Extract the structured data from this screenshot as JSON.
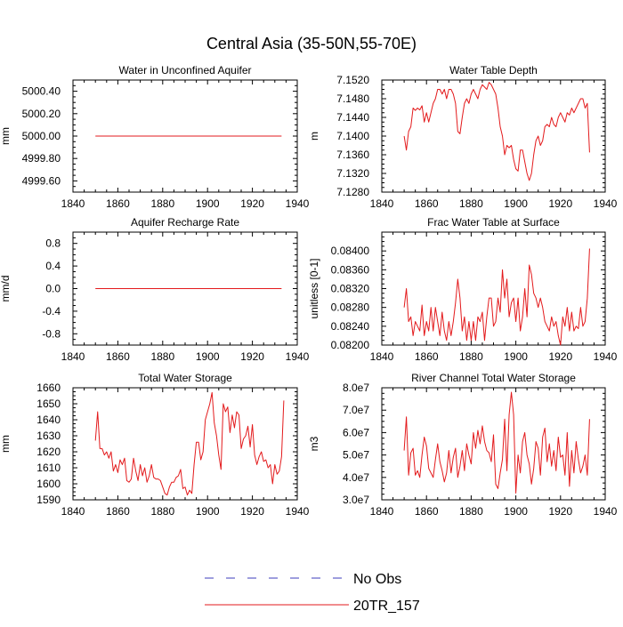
{
  "page_title": "Central Asia (35-50N,55-70E)",
  "legend": {
    "entries": [
      {
        "label": "No Obs",
        "color": "#3c3cbe",
        "style": "dashed"
      },
      {
        "label": "20TR_157",
        "color": "#e31a1c",
        "style": "solid"
      }
    ]
  },
  "chart_data": [
    {
      "type": "line",
      "title": "Water in Unconfined Aquifer",
      "xlabel": "",
      "ylabel": "mm",
      "xlim": [
        1840,
        1940
      ],
      "ylim": [
        4999.5,
        5000.5
      ],
      "xticks": [
        1840,
        1860,
        1880,
        1900,
        1920,
        1940
      ],
      "yticks": [
        "4999.60",
        "4999.80",
        "5000.00",
        "5000.20",
        "5000.40"
      ],
      "grid": false,
      "series": [
        {
          "name": "20TR_157",
          "x": [
            1850,
            1933
          ],
          "values": [
            5000.0,
            5000.0
          ]
        }
      ]
    },
    {
      "type": "line",
      "title": "Water Table Depth",
      "xlabel": "",
      "ylabel": "m",
      "xlim": [
        1840,
        1940
      ],
      "ylim": [
        7.128,
        7.152
      ],
      "xticks": [
        1840,
        1860,
        1880,
        1900,
        1920,
        1940
      ],
      "yticks": [
        "7.1280",
        "7.1320",
        "7.1360",
        "7.1400",
        "7.1440",
        "7.1480",
        "7.1520"
      ],
      "grid": false,
      "series": [
        {
          "name": "20TR_157",
          "x_start": 1850,
          "x_step": 1,
          "values": [
            7.14,
            7.137,
            7.141,
            7.142,
            7.146,
            7.1455,
            7.146,
            7.1456,
            7.1465,
            7.143,
            7.145,
            7.143,
            7.145,
            7.147,
            7.148,
            7.15,
            7.15,
            7.149,
            7.15,
            7.148,
            7.15,
            7.15,
            7.149,
            7.147,
            7.141,
            7.1405,
            7.144,
            7.147,
            7.148,
            7.147,
            7.149,
            7.15,
            7.149,
            7.148,
            7.15,
            7.151,
            7.1505,
            7.15,
            7.1515,
            7.151,
            7.15,
            7.149,
            7.146,
            7.142,
            7.14,
            7.136,
            7.138,
            7.1375,
            7.138,
            7.135,
            7.133,
            7.1325,
            7.137,
            7.137,
            7.1345,
            7.132,
            7.1305,
            7.132,
            7.136,
            7.139,
            7.14,
            7.138,
            7.139,
            7.142,
            7.1425,
            7.142,
            7.144,
            7.1425,
            7.142,
            7.144,
            7.145,
            7.144,
            7.143,
            7.145,
            7.1445,
            7.146,
            7.145,
            7.146,
            7.147,
            7.148,
            7.148,
            7.146,
            7.147,
            7.1365
          ]
        }
      ]
    },
    {
      "type": "line",
      "title": "Aquifer Recharge Rate",
      "xlabel": "",
      "ylabel": "mm/d",
      "xlim": [
        1840,
        1940
      ],
      "ylim": [
        -1.0,
        1.0
      ],
      "xticks": [
        1840,
        1860,
        1880,
        1900,
        1920,
        1940
      ],
      "yticks": [
        "-0.8",
        "-0.4",
        "0.0",
        "0.4",
        "0.8"
      ],
      "grid": false,
      "series": [
        {
          "name": "20TR_157",
          "x": [
            1850,
            1933
          ],
          "values": [
            0.0,
            0.0
          ]
        }
      ]
    },
    {
      "type": "line",
      "title": "Frac Water Table at Surface",
      "xlabel": "",
      "ylabel": "unitless [0-1]",
      "xlim": [
        1840,
        1940
      ],
      "ylim": [
        0.082,
        0.0844
      ],
      "xticks": [
        1840,
        1860,
        1880,
        1900,
        1920,
        1940
      ],
      "yticks": [
        "0.08200",
        "0.08240",
        "0.08280",
        "0.08320",
        "0.08360",
        "0.08400"
      ],
      "grid": false,
      "series": [
        {
          "name": "20TR_157",
          "x_start": 1850,
          "x_step": 1,
          "values": [
            0.0828,
            0.0832,
            0.0825,
            0.0826,
            0.0822,
            0.0825,
            0.0824,
            0.0823,
            0.08285,
            0.0822,
            0.0825,
            0.0823,
            0.0828,
            0.0823,
            0.0828,
            0.0825,
            0.0822,
            0.0827,
            0.0823,
            0.0821,
            0.0825,
            0.0822,
            0.0825,
            0.0829,
            0.0834,
            0.083,
            0.0823,
            0.0826,
            0.0821,
            0.0825,
            0.0821,
            0.0825,
            0.0821,
            0.0826,
            0.0825,
            0.0827,
            0.0821,
            0.0826,
            0.083,
            0.083,
            0.0824,
            0.0825,
            0.083,
            0.0827,
            0.0836,
            0.083,
            0.0834,
            0.0826,
            0.0829,
            0.083,
            0.0825,
            0.083,
            0.0823,
            0.0826,
            0.0832,
            0.0826,
            0.0837,
            0.0835,
            0.0831,
            0.083,
            0.0828,
            0.083,
            0.0828,
            0.0825,
            0.0824,
            0.0823,
            0.0826,
            0.0824,
            0.0825,
            0.0822,
            0.082,
            0.0826,
            0.0824,
            0.0828,
            0.0823,
            0.0827,
            0.0823,
            0.0824,
            0.08235,
            0.0828,
            0.0824,
            0.0825,
            0.083,
            0.08405
          ]
        }
      ]
    },
    {
      "type": "line",
      "title": "Total Water Storage",
      "xlabel": "",
      "ylabel": "mm",
      "xlim": [
        1840,
        1940
      ],
      "ylim": [
        1590,
        1660
      ],
      "xticks": [
        1840,
        1860,
        1880,
        1900,
        1920,
        1940
      ],
      "yticks": [
        "1590",
        "1600",
        "1610",
        "1620",
        "1630",
        "1640",
        "1650",
        "1660"
      ],
      "grid": false,
      "series": [
        {
          "name": "20TR_157",
          "x_start": 1850,
          "x_step": 1,
          "values": [
            1627,
            1645,
            1622,
            1622,
            1618,
            1620,
            1616,
            1620,
            1608,
            1612,
            1607,
            1615,
            1612,
            1616,
            1602,
            1601,
            1603,
            1616,
            1608,
            1602,
            1612,
            1605,
            1610,
            1601,
            1605,
            1612,
            1604,
            1603,
            1603,
            1602,
            1598,
            1594,
            1593,
            1598,
            1601,
            1601,
            1604,
            1605,
            1609,
            1597,
            1598,
            1593,
            1596,
            1594,
            1612,
            1626,
            1626,
            1615,
            1620,
            1640,
            1645,
            1650,
            1657,
            1638,
            1630,
            1618,
            1609,
            1650,
            1645,
            1648,
            1632,
            1643,
            1635,
            1645,
            1643,
            1622,
            1628,
            1630,
            1636,
            1623,
            1637,
            1618,
            1612,
            1617,
            1620,
            1614,
            1615,
            1610,
            1612,
            1600,
            1612,
            1606,
            1608,
            1617,
            1652
          ]
        }
      ]
    },
    {
      "type": "line",
      "title": "River Channel Total Water Storage",
      "xlabel": "",
      "ylabel": "m3",
      "xlim": [
        1840,
        1940
      ],
      "ylim": [
        30000000,
        80000000
      ],
      "xticks": [
        1840,
        1860,
        1880,
        1900,
        1920,
        1940
      ],
      "yticks": [
        "3.0e7",
        "4.0e7",
        "5.0e7",
        "6.0e7",
        "7.0e7",
        "8.0e7"
      ],
      "grid": false,
      "series": [
        {
          "name": "20TR_157",
          "x_start": 1850,
          "x_step": 1,
          "values": [
            52000000,
            67000000,
            41000000,
            51000000,
            53000000,
            41000000,
            43000000,
            40000000,
            50000000,
            58000000,
            54000000,
            44000000,
            42000000,
            40000000,
            48000000,
            55000000,
            47000000,
            43000000,
            38000000,
            42000000,
            52000000,
            42000000,
            49000000,
            53000000,
            40000000,
            45000000,
            52000000,
            43000000,
            55000000,
            50000000,
            46000000,
            60000000,
            53000000,
            61000000,
            55000000,
            63000000,
            56000000,
            52000000,
            51000000,
            47000000,
            59000000,
            37000000,
            35000000,
            42000000,
            48000000,
            66000000,
            43000000,
            68000000,
            78000000,
            68000000,
            33000000,
            50000000,
            42000000,
            56000000,
            60000000,
            50000000,
            46000000,
            37000000,
            44000000,
            56000000,
            53000000,
            41000000,
            58000000,
            62000000,
            47000000,
            55000000,
            45000000,
            52000000,
            43000000,
            58000000,
            49000000,
            50000000,
            41000000,
            60000000,
            36000000,
            52000000,
            42000000,
            56000000,
            48000000,
            42000000,
            45000000,
            50000000,
            41000000,
            66000000
          ]
        }
      ]
    }
  ]
}
